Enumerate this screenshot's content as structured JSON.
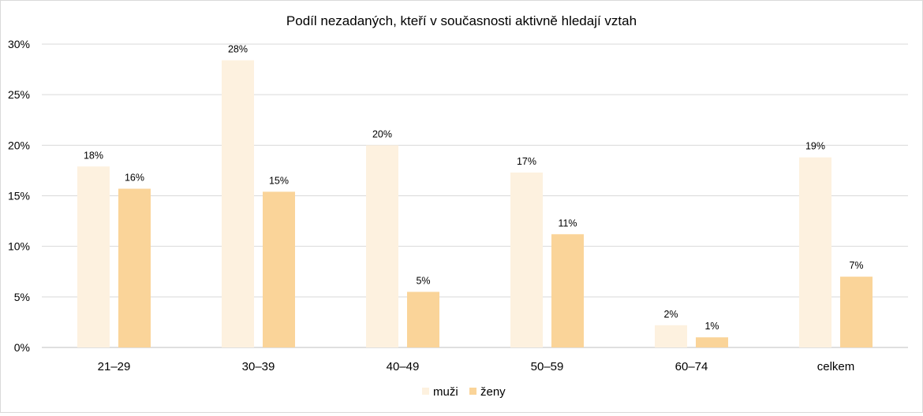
{
  "chart_data": {
    "type": "bar",
    "title": "Podíl nezadaných, kteří v současnosti aktivně hledají vztah",
    "categories": [
      "21–29",
      "30–39",
      "40–49",
      "50–59",
      "60–74",
      "celkem"
    ],
    "series": [
      {
        "name": "muži",
        "color": "#fdf1df",
        "values": [
          18,
          28,
          20,
          17,
          2,
          19
        ],
        "actual": [
          17.9,
          28.4,
          20.0,
          17.3,
          2.2,
          18.8
        ]
      },
      {
        "name": "ženy",
        "color": "#fad499",
        "values": [
          16,
          15,
          5,
          11,
          1,
          7
        ],
        "actual": [
          15.7,
          15.4,
          5.5,
          11.2,
          1.0,
          7.0
        ]
      }
    ],
    "yticks": [
      "0%",
      "5%",
      "10%",
      "15%",
      "20%",
      "25%",
      "30%"
    ],
    "ylim": [
      0,
      30
    ],
    "grid": true,
    "legend": "bottom",
    "xlabel": "",
    "ylabel": ""
  }
}
